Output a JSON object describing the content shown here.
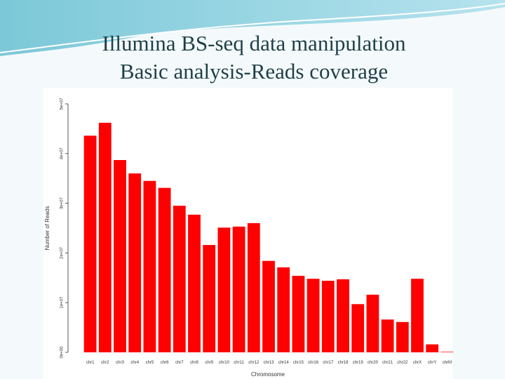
{
  "chart_data": {
    "type": "bar",
    "title": "Illumina BS-seq data manipulation",
    "subtitle": "Basic analysis-Reads coverage",
    "x_label": "Chromosome",
    "y_label": "Number of Reads",
    "categories": [
      "chr1",
      "chr2",
      "chr3",
      "chr4",
      "chr5",
      "chr6",
      "chr7",
      "chr8",
      "chr9",
      "chr10",
      "chr11",
      "chr12",
      "chr13",
      "chr14",
      "chr15",
      "chr16",
      "chr17",
      "chr18",
      "chr19",
      "chr20",
      "chr21",
      "chr22",
      "chrX",
      "chrY",
      "chrM"
    ],
    "values": [
      43600000,
      46200000,
      38700000,
      36000000,
      34500000,
      33100000,
      29500000,
      27700000,
      21600000,
      25100000,
      25300000,
      26000000,
      18400000,
      17100000,
      15400000,
      14800000,
      14400000,
      14700000,
      9700000,
      11600000,
      6600000,
      6100000,
      14800000,
      1600000,
      100000
    ],
    "color": "#ff0000",
    "ylim": [
      0,
      50000000
    ],
    "yticks": [
      {
        "value": 0,
        "label": "0e+00"
      },
      {
        "value": 10000000,
        "label": "1e+07"
      },
      {
        "value": 20000000,
        "label": "2e+07"
      },
      {
        "value": 30000000,
        "label": "3e+07"
      },
      {
        "value": 40000000,
        "label": "4e+07"
      },
      {
        "value": 50000000,
        "label": "5e+07"
      }
    ]
  }
}
